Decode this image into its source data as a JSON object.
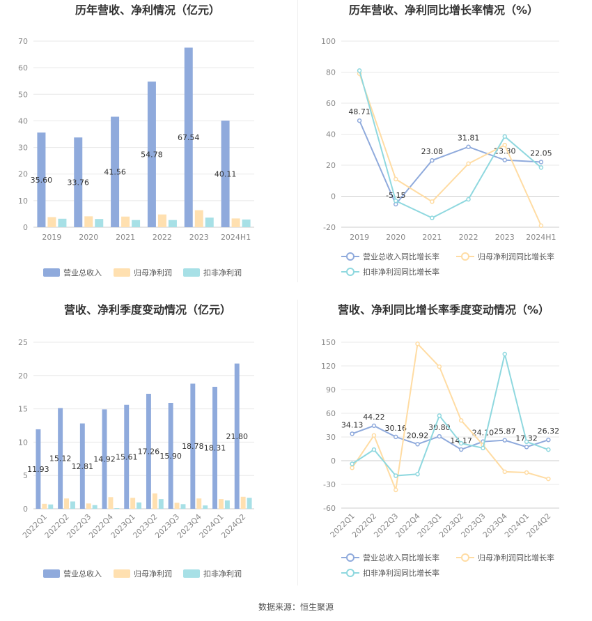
{
  "source": "数据来源：恒生聚源",
  "colors": {
    "revenue": "#8faadc",
    "profit": "#ffe0b0",
    "deducted": "#a7e0e6",
    "revenue_line": "#8faadc",
    "profit_line": "#ffdca3",
    "deducted_line": "#8fd8df"
  },
  "chart_data": [
    {
      "type": "bar",
      "title": "历年营收、净利情况（亿元）",
      "categories": [
        "2019",
        "2020",
        "2021",
        "2022",
        "2023",
        "2024H1"
      ],
      "ylim": [
        0,
        70
      ],
      "yticks": [
        0,
        10,
        20,
        30,
        40,
        50,
        60,
        70
      ],
      "series": [
        {
          "name": "营业总收入",
          "values": [
            35.6,
            33.76,
            41.56,
            54.78,
            67.54,
            40.11
          ],
          "labels": [
            "35.60",
            "33.76",
            "41.56",
            "54.78",
            "67.54",
            "40.11"
          ]
        },
        {
          "name": "归母净利润",
          "values": [
            3.8,
            4.1,
            4.0,
            4.8,
            6.4,
            3.3
          ]
        },
        {
          "name": "扣非净利润",
          "values": [
            3.2,
            3.1,
            2.7,
            2.7,
            3.6,
            2.9
          ]
        }
      ],
      "legend": "bottom"
    },
    {
      "type": "line",
      "title": "历年营收、净利同比增长率情况（%）",
      "categories": [
        "2019",
        "2020",
        "2021",
        "2022",
        "2023",
        "2024H1"
      ],
      "ylim": [
        -20,
        100
      ],
      "yticks": [
        -20,
        0,
        20,
        40,
        60,
        80,
        100
      ],
      "series": [
        {
          "name": "营业总收入同比增长率",
          "values": [
            48.71,
            -5.15,
            23.08,
            31.81,
            23.3,
            22.05
          ],
          "labels": [
            "48.71",
            "-5.15",
            "23.08",
            "31.81",
            "23.30",
            "22.05"
          ]
        },
        {
          "name": "归母净利润同比增长率",
          "values": [
            79,
            11,
            -3.5,
            21,
            33,
            -19
          ]
        },
        {
          "name": "扣非净利润同比增长率",
          "values": [
            81,
            -3,
            -14,
            -2,
            38.5,
            18.5
          ]
        }
      ],
      "legend": "bottom"
    },
    {
      "type": "bar",
      "title": "营收、净利季度变动情况（亿元）",
      "categories": [
        "2022Q1",
        "2022Q2",
        "2022Q3",
        "2022Q4",
        "2023Q1",
        "2023Q2",
        "2023Q3",
        "2023Q4",
        "2024Q1",
        "2024Q2"
      ],
      "ylim": [
        0,
        25
      ],
      "yticks": [
        0,
        5,
        10,
        15,
        20,
        25
      ],
      "series": [
        {
          "name": "营业总收入",
          "values": [
            11.93,
            15.12,
            12.81,
            14.92,
            15.61,
            17.26,
            15.9,
            18.78,
            18.31,
            21.8
          ],
          "labels": [
            "11.93",
            "15.12",
            "12.81",
            "14.92",
            "15.61",
            "17.26",
            "15.90",
            "18.78",
            "18.31",
            "21.80"
          ]
        },
        {
          "name": "归母净利润",
          "values": [
            0.75,
            1.55,
            0.8,
            1.75,
            1.65,
            2.3,
            0.9,
            1.55,
            1.45,
            1.8
          ]
        },
        {
          "name": "扣非净利润",
          "values": [
            0.65,
            1.1,
            0.55,
            0.1,
            0.95,
            1.45,
            0.7,
            0.5,
            1.25,
            1.65
          ]
        }
      ],
      "legend": "bottom"
    },
    {
      "type": "line",
      "title": "营收、净利同比增长率季度变动情况（%）",
      "categories": [
        "2022Q1",
        "2022Q2",
        "2022Q3",
        "2022Q4",
        "2023Q1",
        "2023Q2",
        "2023Q3",
        "2023Q4",
        "2024Q1",
        "2024Q2"
      ],
      "ylim": [
        -60,
        150
      ],
      "yticks": [
        -60,
        -30,
        0,
        30,
        60,
        90,
        120,
        150
      ],
      "series": [
        {
          "name": "营业总收入同比增长率",
          "values": [
            34.13,
            44.22,
            30.16,
            20.92,
            30.8,
            14.17,
            24.1,
            25.87,
            17.32,
            26.32
          ],
          "labels": [
            "34.13",
            "44.22",
            "30.16",
            "20.92",
            "30.80",
            "14.17",
            "24.10",
            "25.87",
            "17.32",
            "26.32"
          ]
        },
        {
          "name": "归母净利润同比增长率",
          "values": [
            -9,
            32,
            -37,
            148,
            119,
            51,
            20,
            -14,
            -15,
            -23
          ]
        },
        {
          "name": "扣非净利润同比增长率",
          "values": [
            -4,
            14,
            -19,
            -17,
            57,
            22,
            16,
            135,
            24,
            14
          ]
        }
      ],
      "legend": "bottom"
    }
  ]
}
